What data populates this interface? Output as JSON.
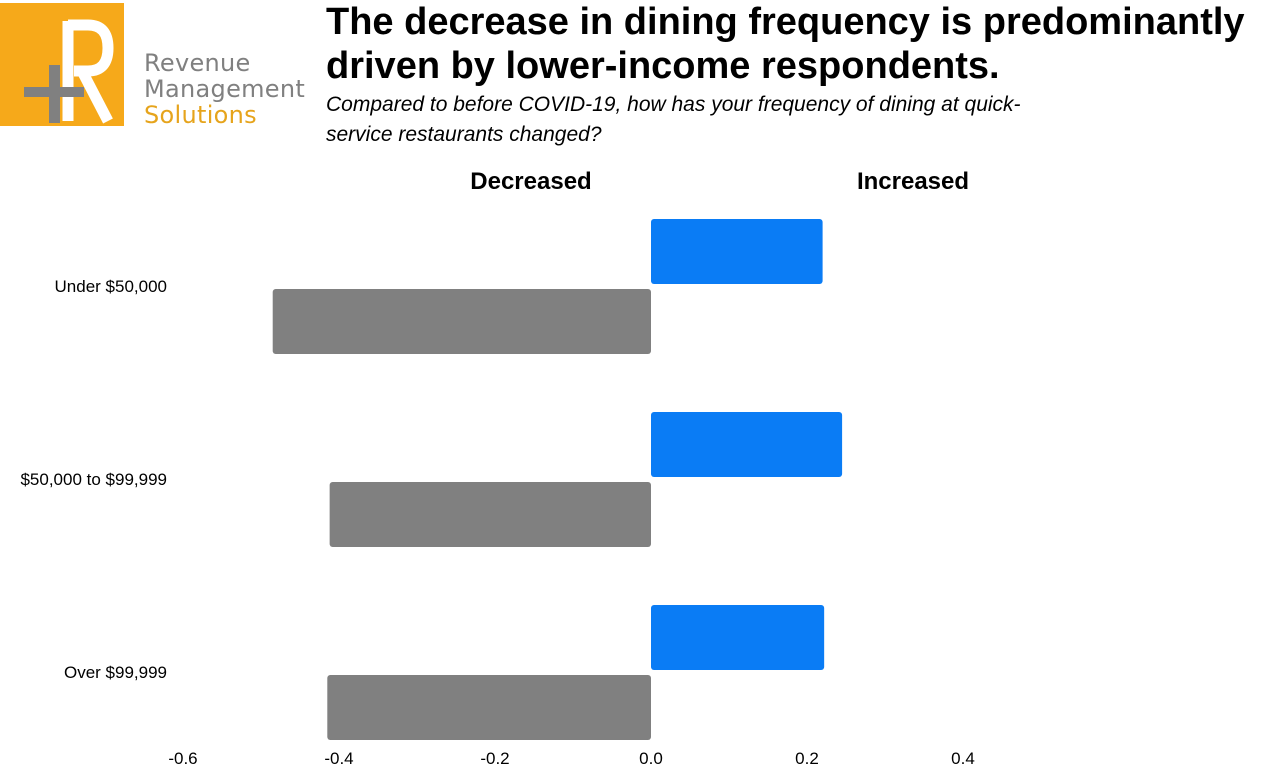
{
  "logo": {
    "line1": "Revenue",
    "line2": "Management",
    "line3": "Solutions",
    "brand_color": "#F6A91A"
  },
  "header": {
    "title": "The decrease in dining frequency is predominantly driven by lower-income respondents.",
    "subtitle": "Compared to before COVID-19, how has your frequency of dining at quick-service restaurants changed?"
  },
  "chart_data": {
    "type": "bar",
    "orientation": "horizontal",
    "panel_headings": [
      "Decreased",
      "Increased"
    ],
    "categories": [
      "Under $50,000",
      "$50,000 to $99,999",
      "Over $99,999"
    ],
    "series": [
      {
        "values": [
          0.22,
          0.245,
          0.222
        ],
        "color": "#0A7CF5"
      },
      {
        "values": [
          -0.485,
          -0.412,
          -0.415
        ],
        "color": "#808080"
      }
    ],
    "xlim": [
      -0.6,
      0.4
    ],
    "xticks": [
      -0.6,
      -0.4,
      -0.2,
      0.0,
      0.2,
      0.4
    ],
    "xtick_labels": [
      "-0.6",
      "-0.4",
      "-0.2",
      "0.0",
      "0.2",
      "0.4"
    ],
    "grid": false,
    "legend": "none"
  }
}
